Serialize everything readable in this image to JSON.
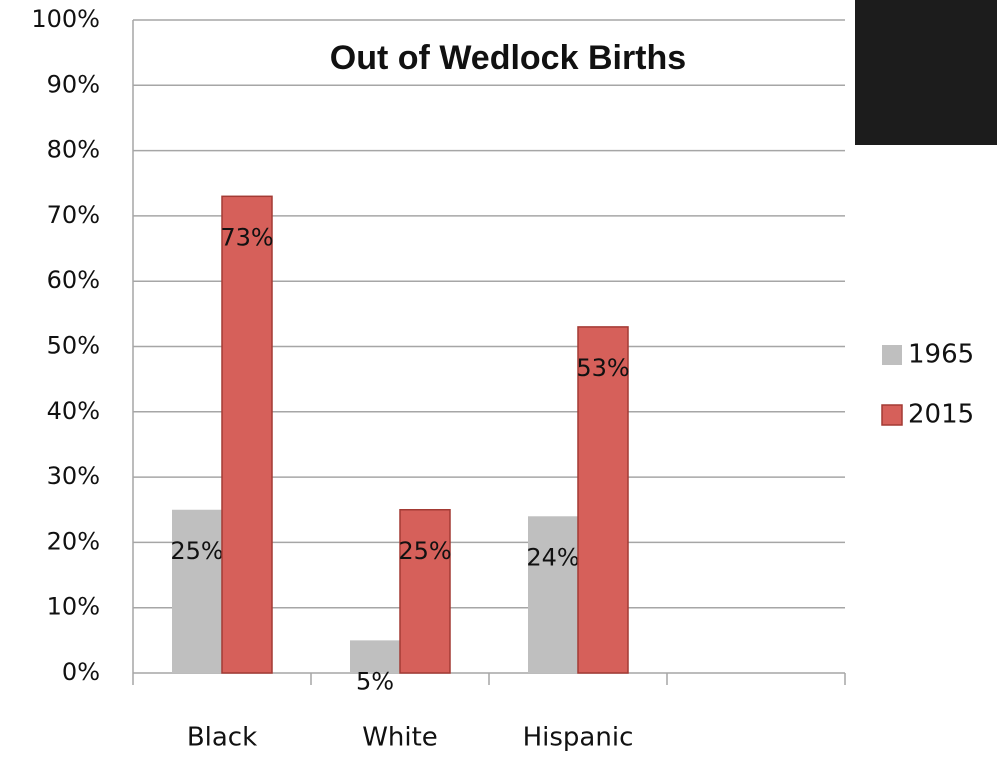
{
  "chart_data": {
    "type": "bar",
    "title": "Out of Wedlock Births",
    "categories": [
      "Black",
      "White",
      "Hispanic",
      null
    ],
    "series": [
      {
        "name": "1965",
        "color": "#bfbfbf",
        "values": [
          25,
          5,
          24,
          null
        ],
        "value_labels": [
          "25%",
          "5%",
          "24%",
          null
        ]
      },
      {
        "name": "2015",
        "color": "#d6605a",
        "values": [
          73,
          25,
          53,
          null
        ],
        "value_labels": [
          "73%",
          "25%",
          "53%",
          null
        ]
      }
    ],
    "ylim": [
      0,
      100
    ],
    "yticks": [
      {
        "value": 0,
        "label": "0%"
      },
      {
        "value": 10,
        "label": "10%"
      },
      {
        "value": 20,
        "label": "20%"
      },
      {
        "value": 30,
        "label": "30%"
      },
      {
        "value": 40,
        "label": "40%"
      },
      {
        "value": 50,
        "label": "50%"
      },
      {
        "value": 60,
        "label": "60%"
      },
      {
        "value": 70,
        "label": "70%"
      },
      {
        "value": 80,
        "label": "80%"
      },
      {
        "value": 90,
        "label": "90%"
      },
      {
        "value": 100,
        "label": "100%"
      }
    ],
    "grid": true,
    "legend": "right"
  }
}
